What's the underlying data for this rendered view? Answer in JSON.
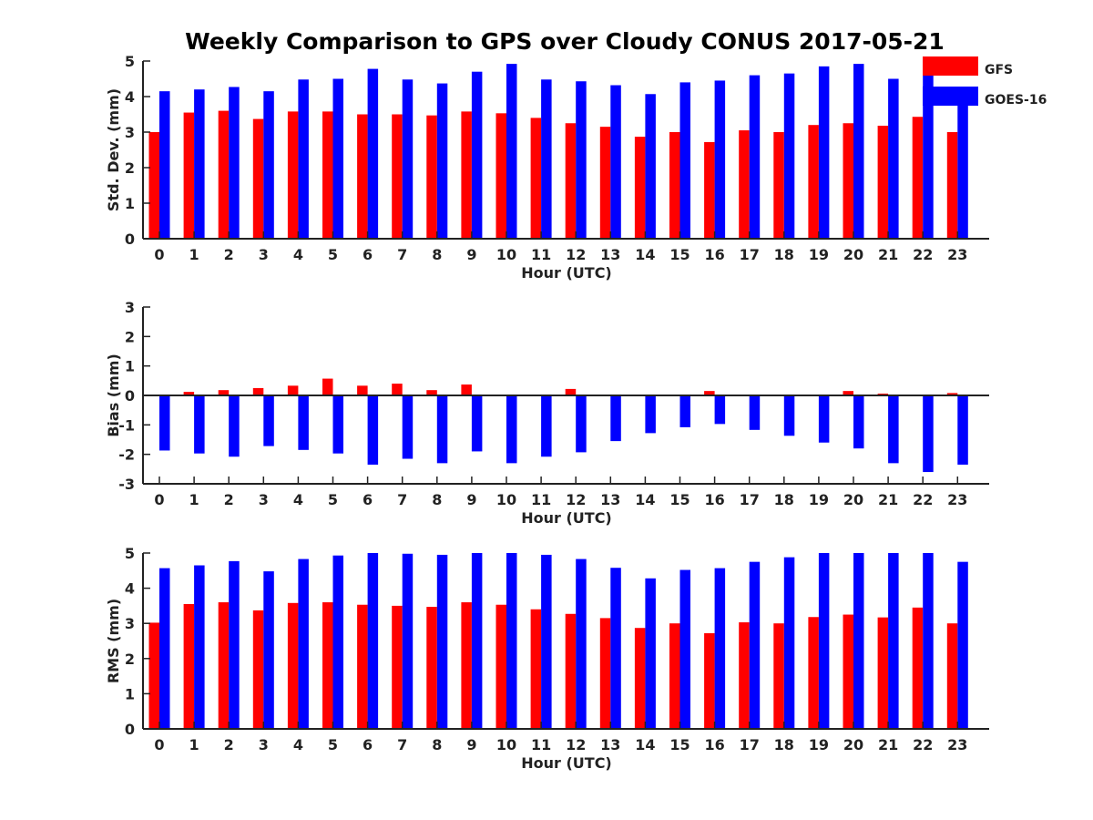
{
  "figure": {
    "title": "Weekly Comparison to GPS over Cloudy CONUS 2017-05-21"
  },
  "legend": {
    "placement": "top-right",
    "entries": [
      {
        "name": "GFS",
        "color": "#ff0000"
      },
      {
        "name": "GOES-16",
        "color": "#0000ff"
      }
    ]
  },
  "chart_data": [
    {
      "type": "bar",
      "xlabel": "Hour (UTC)",
      "ylabel": "Std. Dev. (mm)",
      "ylim": [
        0,
        5
      ],
      "yticks": [
        0,
        1,
        2,
        3,
        4,
        5
      ],
      "grid": false,
      "categories": [
        "0",
        "1",
        "2",
        "3",
        "4",
        "5",
        "6",
        "7",
        "8",
        "9",
        "10",
        "11",
        "12",
        "13",
        "14",
        "15",
        "16",
        "17",
        "18",
        "19",
        "20",
        "21",
        "22",
        "23"
      ],
      "series": [
        {
          "name": "GFS",
          "color": "#ff0000",
          "values": [
            3.0,
            3.55,
            3.6,
            3.37,
            3.58,
            3.58,
            3.5,
            3.5,
            3.47,
            3.58,
            3.53,
            3.4,
            3.25,
            3.15,
            2.87,
            3.0,
            2.72,
            3.05,
            3.0,
            3.2,
            3.25,
            3.18,
            3.43,
            3.0
          ]
        },
        {
          "name": "GOES-16",
          "color": "#0000ff",
          "values": [
            4.15,
            4.2,
            4.27,
            4.15,
            4.48,
            4.5,
            4.78,
            4.48,
            4.37,
            4.7,
            4.92,
            4.48,
            4.43,
            4.32,
            4.07,
            4.4,
            4.45,
            4.6,
            4.65,
            4.85,
            4.92,
            4.5,
            4.75,
            3.75
          ]
        }
      ]
    },
    {
      "type": "bar",
      "xlabel": "Hour (UTC)",
      "ylabel": "Bias (mm)",
      "ylim": [
        -3,
        3
      ],
      "yticks": [
        -3,
        -2,
        -1,
        0,
        1,
        2,
        3
      ],
      "grid": false,
      "categories": [
        "0",
        "1",
        "2",
        "3",
        "4",
        "5",
        "6",
        "7",
        "8",
        "9",
        "10",
        "11",
        "12",
        "13",
        "14",
        "15",
        "16",
        "17",
        "18",
        "19",
        "20",
        "21",
        "22",
        "23"
      ],
      "series": [
        {
          "name": "GFS",
          "color": "#ff0000",
          "values": [
            0.02,
            0.12,
            0.18,
            0.25,
            0.33,
            0.57,
            0.33,
            0.4,
            0.18,
            0.37,
            -0.02,
            0.03,
            0.22,
            0.0,
            0.0,
            0.0,
            0.15,
            0.02,
            -0.02,
            -0.02,
            0.15,
            0.06,
            -0.03,
            0.08
          ]
        },
        {
          "name": "GOES-16",
          "color": "#0000ff",
          "values": [
            -1.87,
            -1.97,
            -2.08,
            -1.72,
            -1.85,
            -1.97,
            -2.35,
            -2.15,
            -2.3,
            -1.9,
            -2.3,
            -2.08,
            -1.93,
            -1.55,
            -1.28,
            -1.08,
            -0.97,
            -1.17,
            -1.37,
            -1.6,
            -1.8,
            -2.3,
            -2.6,
            -2.35
          ]
        }
      ]
    },
    {
      "type": "bar",
      "xlabel": "Hour (UTC)",
      "ylabel": "RMS (mm)",
      "ylim": [
        0,
        5
      ],
      "yticks": [
        0,
        1,
        2,
        3,
        4,
        5
      ],
      "grid": false,
      "categories": [
        "0",
        "1",
        "2",
        "3",
        "4",
        "5",
        "6",
        "7",
        "8",
        "9",
        "10",
        "11",
        "12",
        "13",
        "14",
        "15",
        "16",
        "17",
        "18",
        "19",
        "20",
        "21",
        "22",
        "23"
      ],
      "series": [
        {
          "name": "GFS",
          "color": "#ff0000",
          "values": [
            3.02,
            3.55,
            3.6,
            3.37,
            3.58,
            3.6,
            3.53,
            3.5,
            3.47,
            3.6,
            3.53,
            3.4,
            3.27,
            3.15,
            2.87,
            3.0,
            2.72,
            3.03,
            3.0,
            3.18,
            3.25,
            3.17,
            3.45,
            3.0
          ]
        },
        {
          "name": "GOES-16",
          "color": "#0000ff",
          "values": [
            4.57,
            4.65,
            4.77,
            4.48,
            4.83,
            4.93,
            5.0,
            4.98,
            4.95,
            5.0,
            5.0,
            4.95,
            4.83,
            4.58,
            4.28,
            4.52,
            4.57,
            4.75,
            4.88,
            5.0,
            5.0,
            5.0,
            5.0,
            4.75
          ]
        }
      ]
    }
  ]
}
